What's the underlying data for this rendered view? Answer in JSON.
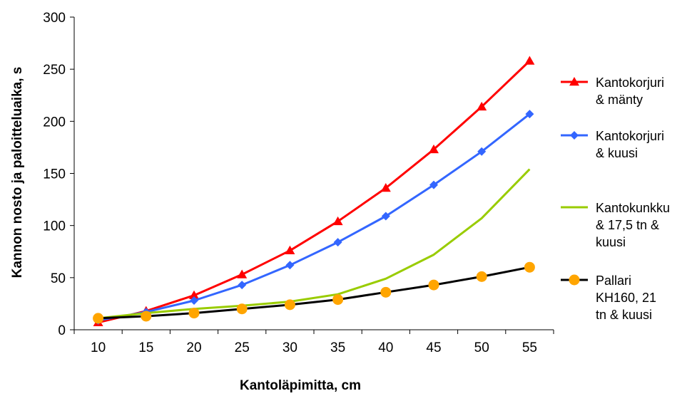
{
  "chart_data": {
    "type": "line",
    "title": "",
    "xlabel": "Kantoläpimitta, cm",
    "ylabel": "Kannon nosto ja paloitteluaika, s",
    "x": [
      10,
      15,
      20,
      25,
      30,
      35,
      40,
      45,
      50,
      55
    ],
    "ylim": [
      0,
      300
    ],
    "yticks": [
      0,
      50,
      100,
      150,
      200,
      250,
      300
    ],
    "grid": false,
    "legend_position": "right",
    "series": [
      {
        "name_lines": [
          "Kantokorjuri",
          "& mänty"
        ],
        "color": "#ff0000",
        "marker": "triangle",
        "values": [
          7,
          18,
          33,
          53,
          76,
          104,
          136,
          173,
          214,
          258
        ]
      },
      {
        "name_lines": [
          "Kantokorjuri",
          "& kuusi"
        ],
        "color": "#3366ff",
        "marker": "diamond",
        "values": [
          9,
          17,
          28,
          43,
          62,
          84,
          109,
          139,
          171,
          207
        ]
      },
      {
        "name_lines": [
          "Kantokunkku",
          "& 17,5 tn &",
          "kuusi"
        ],
        "color": "#99cc00",
        "marker": "none",
        "values": [
          11,
          16,
          20,
          23,
          27,
          34,
          49,
          72,
          107,
          154
        ]
      },
      {
        "name_lines": [
          "Pallari",
          "KH160, 21",
          "tn & kuusi"
        ],
        "color": "#000000",
        "marker_color": "#ffa500",
        "marker": "circle",
        "values": [
          11,
          13,
          16,
          20,
          24,
          29,
          36,
          43,
          51,
          60
        ]
      }
    ]
  }
}
